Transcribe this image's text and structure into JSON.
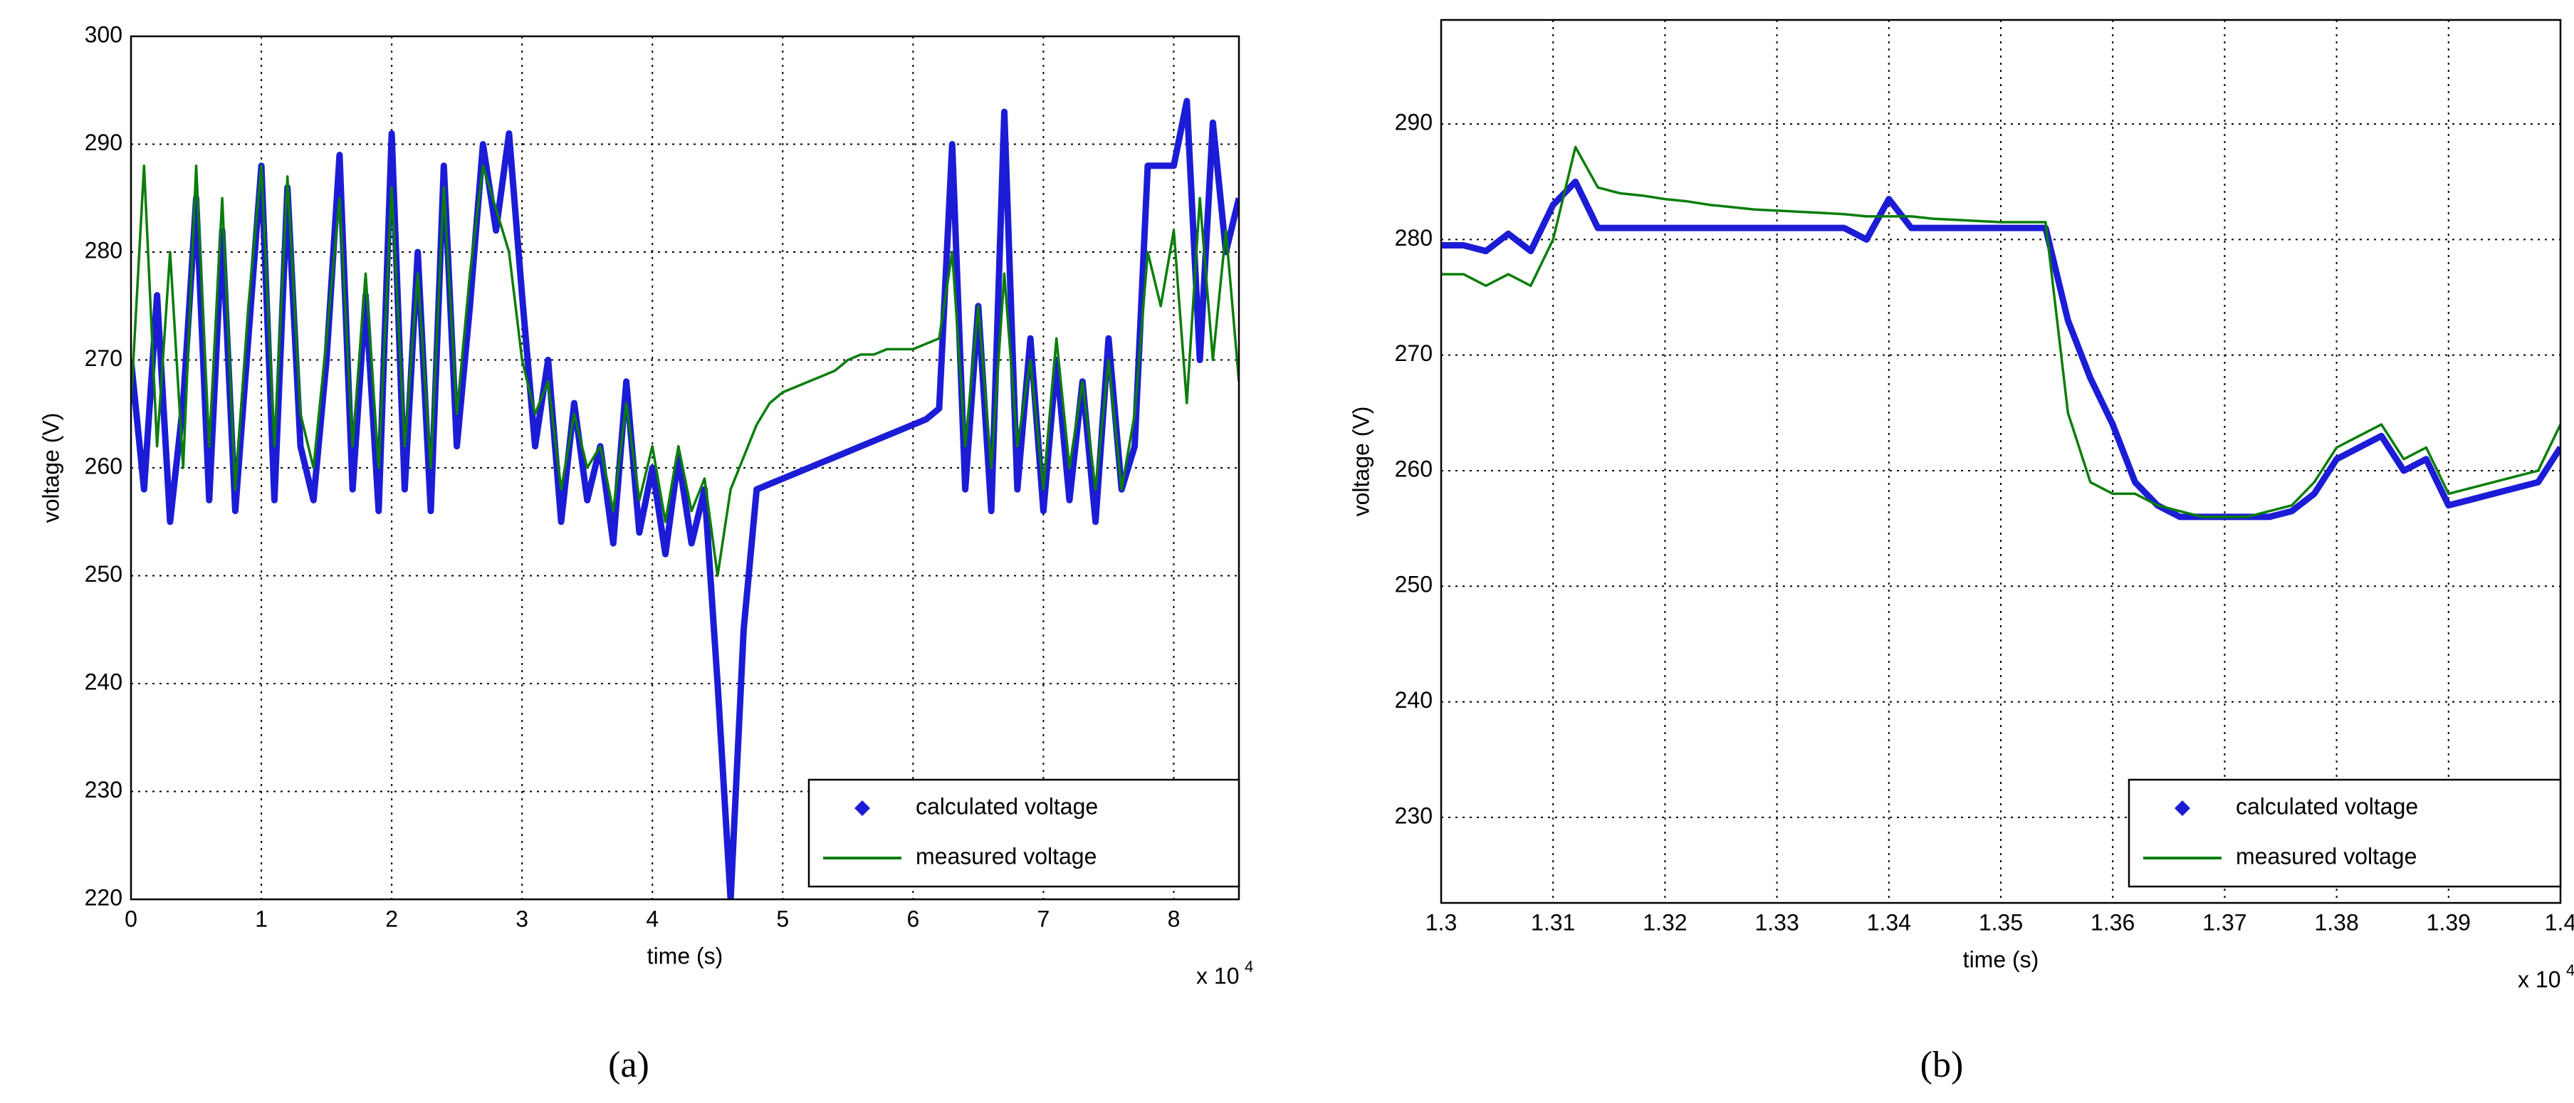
{
  "chart_data": [
    {
      "type": "line",
      "caption": "(a)",
      "xlabel": "time (s)",
      "ylabel": "voltage (V)",
      "x_scale_label": "x 10",
      "x_scale_exponent": "4",
      "xlim": [
        0,
        8.5
      ],
      "xticks": [
        0,
        1,
        2,
        3,
        4,
        5,
        6,
        7,
        8
      ],
      "ylim": [
        220,
        300
      ],
      "yticks": [
        220,
        230,
        240,
        250,
        260,
        270,
        280,
        290,
        300
      ],
      "grid": true,
      "legend": "lower right",
      "x": [
        0.0,
        0.1,
        0.2,
        0.3,
        0.4,
        0.5,
        0.6,
        0.7,
        0.8,
        0.9,
        1.0,
        1.1,
        1.2,
        1.3,
        1.4,
        1.5,
        1.6,
        1.7,
        1.8,
        1.9,
        2.0,
        2.1,
        2.2,
        2.3,
        2.4,
        2.5,
        2.6,
        2.7,
        2.8,
        2.9,
        3.0,
        3.1,
        3.2,
        3.3,
        3.4,
        3.5,
        3.6,
        3.7,
        3.8,
        3.9,
        4.0,
        4.1,
        4.2,
        4.3,
        4.4,
        4.5,
        4.6,
        4.7,
        4.8,
        4.9,
        5.0,
        5.1,
        5.2,
        5.3,
        5.4,
        5.5,
        5.6,
        5.7,
        5.8,
        5.9,
        6.0,
        6.1,
        6.2,
        6.3,
        6.4,
        6.5,
        6.6,
        6.7,
        6.8,
        6.9,
        7.0,
        7.1,
        7.2,
        7.3,
        7.4,
        7.5,
        7.6,
        7.7,
        7.8,
        7.9,
        8.0,
        8.1,
        8.2,
        8.3,
        8.4,
        8.5
      ],
      "series": [
        {
          "name": "calculated voltage",
          "color": "#1c1cd6",
          "values": [
            270,
            258,
            276,
            255,
            266,
            285,
            257,
            282,
            256,
            272,
            288,
            257,
            286,
            262,
            257,
            270,
            289,
            258,
            276,
            256,
            291,
            258,
            280,
            256,
            288,
            262,
            275,
            290,
            282,
            291,
            276,
            262,
            270,
            255,
            266,
            257,
            262,
            253,
            268,
            254,
            260,
            252,
            261,
            253,
            258,
            240,
            220,
            245,
            258,
            258.5,
            259,
            259.5,
            260,
            260.5,
            261,
            261.5,
            262,
            262.5,
            263,
            263.5,
            264,
            264.5,
            265.5,
            290,
            258,
            275,
            256,
            293,
            258,
            272,
            256,
            270,
            257,
            268,
            255,
            272,
            258,
            262,
            288,
            288,
            288,
            294,
            270,
            292,
            280,
            285
          ]
        },
        {
          "name": "measured voltage",
          "color": "#0a7d0a",
          "values": [
            266,
            288,
            262,
            280,
            260,
            288,
            262,
            285,
            258,
            275,
            288,
            262,
            287,
            265,
            260,
            272,
            285,
            262,
            278,
            260,
            286,
            262,
            278,
            260,
            286,
            265,
            278,
            288,
            284,
            280,
            270,
            265,
            268,
            258,
            265,
            260,
            262,
            256,
            266,
            257,
            262,
            255,
            262,
            256,
            259,
            250,
            258,
            261,
            264,
            266,
            267,
            267.5,
            268,
            268.5,
            269,
            270,
            270.5,
            270.5,
            271,
            271,
            271,
            271.5,
            272,
            280,
            262,
            275,
            260,
            278,
            262,
            270,
            258,
            272,
            260,
            268,
            258,
            270,
            258,
            265,
            280,
            275,
            282,
            266,
            285,
            270,
            282,
            268
          ]
        }
      ]
    },
    {
      "type": "line",
      "caption": "(b)",
      "xlabel": "time (s)",
      "ylabel": "voltage (V)",
      "x_scale_label": "x 10",
      "x_scale_exponent": "4",
      "xlim": [
        1.3,
        1.4
      ],
      "xticks": [
        1.3,
        1.31,
        1.32,
        1.33,
        1.34,
        1.35,
        1.36,
        1.37,
        1.38,
        1.39,
        1.4
      ],
      "ylim": [
        222.6,
        299
      ],
      "yticks": [
        230,
        240,
        250,
        260,
        270,
        280,
        290
      ],
      "grid": true,
      "legend": "lower right",
      "x": [
        1.3,
        1.302,
        1.304,
        1.306,
        1.308,
        1.31,
        1.312,
        1.314,
        1.316,
        1.318,
        1.32,
        1.322,
        1.324,
        1.326,
        1.328,
        1.33,
        1.332,
        1.334,
        1.336,
        1.338,
        1.34,
        1.342,
        1.344,
        1.346,
        1.348,
        1.35,
        1.352,
        1.354,
        1.356,
        1.358,
        1.36,
        1.362,
        1.364,
        1.366,
        1.368,
        1.37,
        1.372,
        1.374,
        1.376,
        1.378,
        1.38,
        1.382,
        1.384,
        1.386,
        1.388,
        1.39,
        1.392,
        1.394,
        1.396,
        1.398,
        1.4
      ],
      "series": [
        {
          "name": "calculated voltage",
          "color": "#1c1cd6",
          "values": [
            279.5,
            279.5,
            279,
            280.5,
            279,
            283,
            285,
            281,
            281,
            281,
            281,
            281,
            281,
            281,
            281,
            281,
            281,
            281,
            281,
            280,
            283.5,
            281,
            281,
            281,
            281,
            281,
            281,
            281,
            273,
            268,
            264,
            259,
            257,
            256,
            256,
            256,
            256,
            256,
            256.5,
            258,
            261,
            262,
            263,
            260,
            261,
            257,
            257.5,
            258,
            258.5,
            259,
            262
          ]
        },
        {
          "name": "measured voltage",
          "color": "#0a7d0a",
          "values": [
            277,
            277,
            276,
            277,
            276,
            280,
            288,
            284.5,
            284,
            283.8,
            283.5,
            283.3,
            283,
            282.8,
            282.6,
            282.5,
            282.4,
            282.3,
            282.2,
            282,
            282,
            282,
            281.8,
            281.7,
            281.6,
            281.5,
            281.5,
            281.5,
            265,
            259,
            258,
            258,
            257,
            256.5,
            256,
            256,
            256,
            256.5,
            257,
            259,
            262,
            263,
            264,
            261,
            262,
            258,
            258.5,
            259,
            259.5,
            260,
            264
          ]
        }
      ]
    }
  ]
}
